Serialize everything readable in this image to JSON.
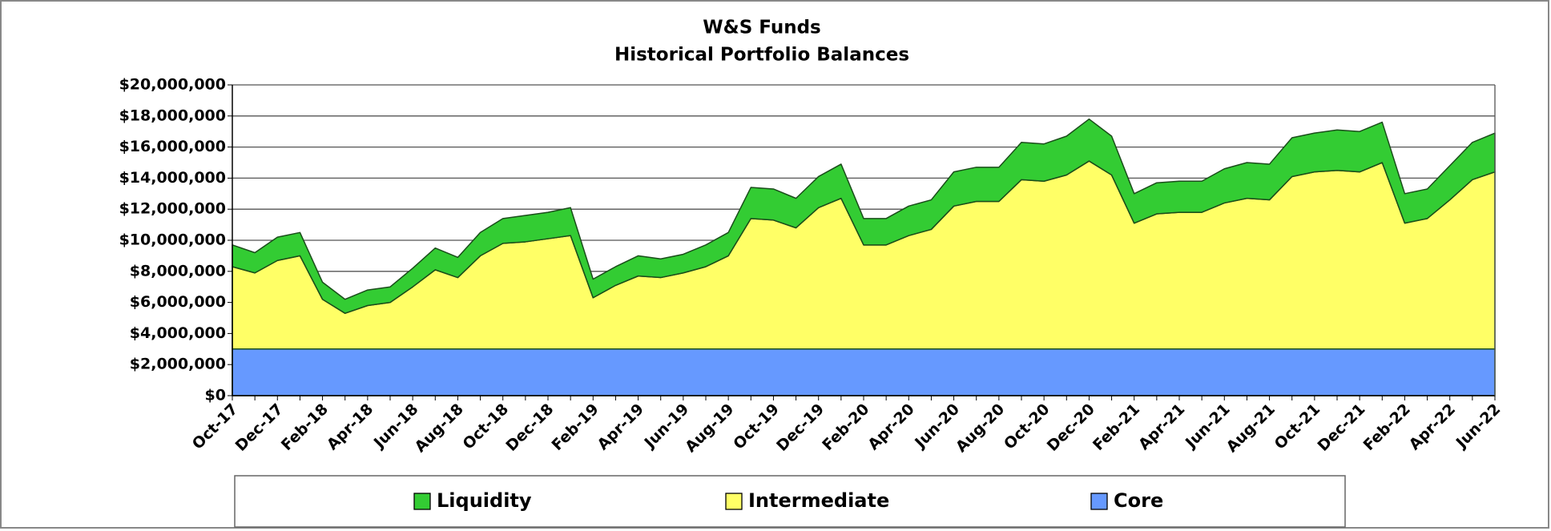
{
  "chart_data": {
    "type": "stacked_area",
    "title": "W&S Funds",
    "subtitle": "Historical Portfolio Balances",
    "categories": [
      "Oct-17",
      null,
      "Dec-17",
      null,
      "Feb-18",
      null,
      "Apr-18",
      null,
      "Jun-18",
      null,
      "Aug-18",
      null,
      "Oct-18",
      null,
      "Dec-18",
      null,
      "Feb-19",
      null,
      "Apr-19",
      null,
      "Jun-19",
      null,
      "Aug-19",
      null,
      "Oct-19",
      null,
      "Dec-19",
      null,
      "Feb-20",
      null,
      "Apr-20",
      null,
      "Jun-20",
      null,
      "Aug-20",
      null,
      "Oct-20",
      null,
      "Dec-20",
      null,
      "Feb-21",
      null,
      "Apr-21",
      null,
      "Jun-21",
      null,
      "Aug-21",
      null,
      "Oct-21",
      null,
      "Dec-21",
      null,
      "Feb-22",
      null,
      "Apr-22",
      null,
      "Jun-22"
    ],
    "series": [
      {
        "name": "Liquidity",
        "color": "#33cc33",
        "values": [
          1400000,
          1300000,
          1500000,
          1500000,
          1100000,
          900000,
          1000000,
          1000000,
          1200000,
          1400000,
          1300000,
          1500000,
          1600000,
          1700000,
          1700000,
          1800000,
          1200000,
          1200000,
          1300000,
          1200000,
          1200000,
          1400000,
          1500000,
          2000000,
          2000000,
          1900000,
          2000000,
          2200000,
          1700000,
          1700000,
          1900000,
          1900000,
          2200000,
          2200000,
          2200000,
          2400000,
          2400000,
          2500000,
          2700000,
          2500000,
          1900000,
          2000000,
          2000000,
          2000000,
          2200000,
          2300000,
          2300000,
          2500000,
          2500000,
          2600000,
          2600000,
          2600000,
          1900000,
          1900000,
          2200000,
          2400000,
          2500000
        ]
      },
      {
        "name": "Intermediate",
        "color": "#ffff66",
        "values": [
          5300000,
          4900000,
          5700000,
          6000000,
          3200000,
          2300000,
          2800000,
          3000000,
          4000000,
          5100000,
          4600000,
          6000000,
          6800000,
          6900000,
          7100000,
          7300000,
          3300000,
          4100000,
          4700000,
          4600000,
          4900000,
          5300000,
          6000000,
          8400000,
          8300000,
          7800000,
          9100000,
          9700000,
          6700000,
          6700000,
          7300000,
          7700000,
          9200000,
          9500000,
          9500000,
          10900000,
          10800000,
          11200000,
          12100000,
          11200000,
          8100000,
          8700000,
          8800000,
          8800000,
          9400000,
          9700000,
          9600000,
          11100000,
          11400000,
          11500000,
          11400000,
          12000000,
          8100000,
          8400000,
          9600000,
          10900000,
          11400000
        ]
      },
      {
        "name": "Core",
        "color": "#6699ff",
        "values": [
          3000000,
          3000000,
          3000000,
          3000000,
          3000000,
          3000000,
          3000000,
          3000000,
          3000000,
          3000000,
          3000000,
          3000000,
          3000000,
          3000000,
          3000000,
          3000000,
          3000000,
          3000000,
          3000000,
          3000000,
          3000000,
          3000000,
          3000000,
          3000000,
          3000000,
          3000000,
          3000000,
          3000000,
          3000000,
          3000000,
          3000000,
          3000000,
          3000000,
          3000000,
          3000000,
          3000000,
          3000000,
          3000000,
          3000000,
          3000000,
          3000000,
          3000000,
          3000000,
          3000000,
          3000000,
          3000000,
          3000000,
          3000000,
          3000000,
          3000000,
          3000000,
          3000000,
          3000000,
          3000000,
          3000000,
          3000000,
          3000000
        ]
      }
    ],
    "ylim": [
      0,
      20000000
    ],
    "yticks": [
      {
        "value": 0,
        "label": "$0"
      },
      {
        "value": 2000000,
        "label": "$2,000,000"
      },
      {
        "value": 4000000,
        "label": "$4,000,000"
      },
      {
        "value": 6000000,
        "label": "$6,000,000"
      },
      {
        "value": 8000000,
        "label": "$8,000,000"
      },
      {
        "value": 10000000,
        "label": "$10,000,000"
      },
      {
        "value": 12000000,
        "label": "$12,000,000"
      },
      {
        "value": 14000000,
        "label": "$14,000,000"
      },
      {
        "value": 16000000,
        "label": "$16,000,000"
      },
      {
        "value": 18000000,
        "label": "$18,000,000"
      },
      {
        "value": 20000000,
        "label": "$20,000,000"
      }
    ],
    "grid": true,
    "legend": "bottom"
  }
}
